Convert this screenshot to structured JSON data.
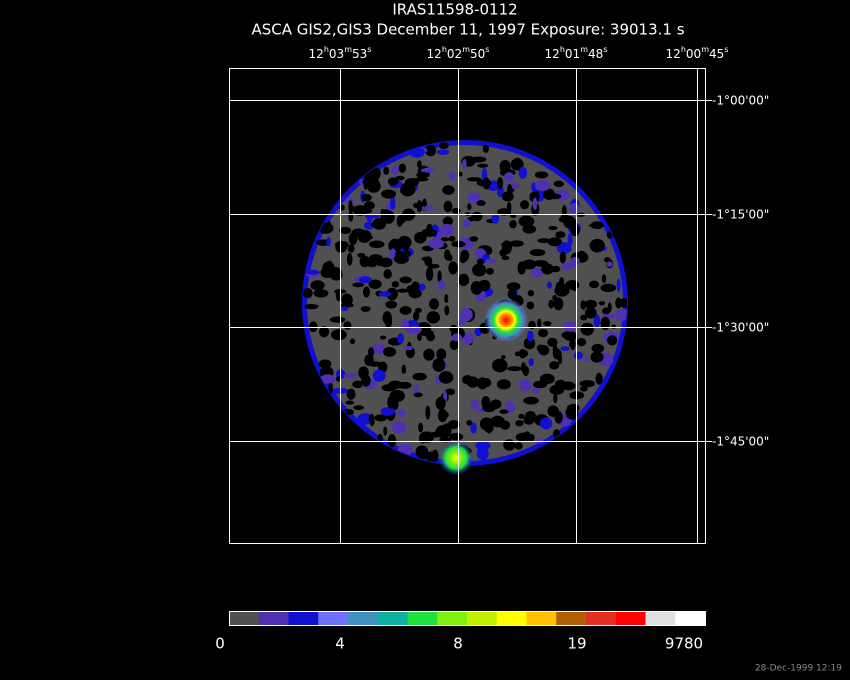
{
  "header": {
    "title": "IRAS11598-0112",
    "subtitle": "ASCA GIS2,GIS3 December 11, 1997 Exposure: 39013.1 s"
  },
  "ra_ticks": [
    [
      "12",
      "h",
      "03",
      "m",
      "53",
      "s"
    ],
    [
      "12",
      "h",
      "02",
      "m",
      "50",
      "s"
    ],
    [
      "12",
      "h",
      "01",
      "m",
      "48",
      "s"
    ],
    [
      "12",
      "h",
      "00",
      "m",
      "45",
      "s"
    ]
  ],
  "dec_ticks": [
    "-1°00'00\"",
    "-1°15'00\"",
    "-1°30'00\"",
    "-1°45'00\""
  ],
  "colorbar": {
    "colors": [
      "#505050",
      "#5030b0",
      "#1010d0",
      "#7070ff",
      "#4090c0",
      "#10b0a0",
      "#20e040",
      "#80f010",
      "#c0f000",
      "#ffff00",
      "#ffc000",
      "#b06000",
      "#e03020",
      "#ff0000",
      "#e0e0e0",
      "#ffffff"
    ],
    "labels": [
      "0",
      "4",
      "8",
      "19",
      "9780"
    ]
  },
  "timestamp": "28-Dec-1999 12:19"
}
